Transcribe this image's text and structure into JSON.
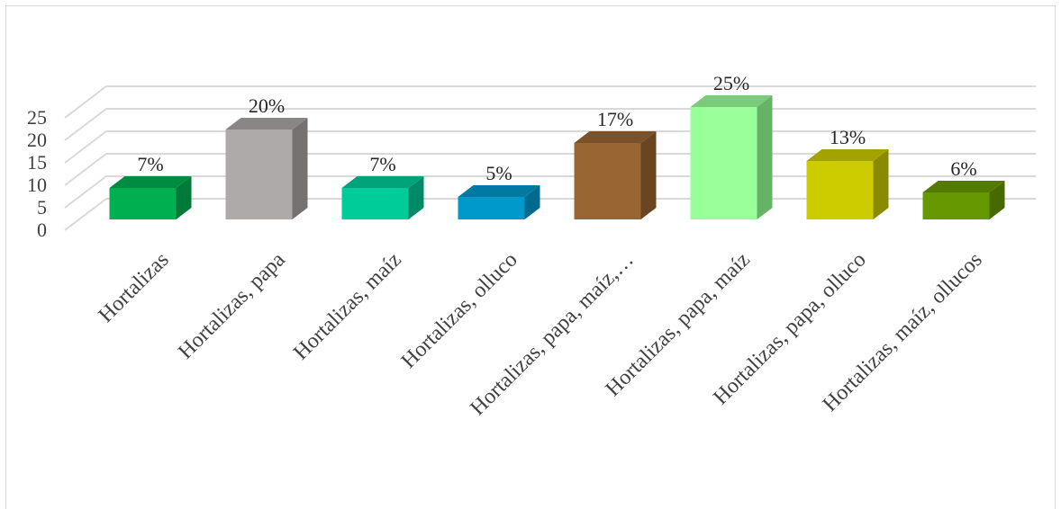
{
  "chart_data": {
    "type": "bar",
    "style": "3d-column",
    "categories": [
      "Hortalizas",
      "Hortalizas, papa",
      "Hortalizas, maíz",
      "Hortalizas, olluco",
      "Hortalizas, papa, maíz,…",
      "Hortalizas, papa, maíz",
      "Hortalizas, papa, olluco",
      "Hortalizas, maíz, ollucos"
    ],
    "values": [
      7,
      20,
      7,
      5,
      17,
      25,
      13,
      6
    ],
    "data_labels": [
      "7%",
      "20%",
      "7%",
      "5%",
      "17%",
      "25%",
      "13%",
      "6%"
    ],
    "colors": [
      "#00b050",
      "#aeaaaa",
      "#00cc99",
      "#0099cc",
      "#996633",
      "#99ff99",
      "#cccc00",
      "#669900"
    ],
    "side_colors": [
      "#007a38",
      "#767171",
      "#008a68",
      "#006a8e",
      "#6a4522",
      "#66b366",
      "#8a8a00",
      "#466900"
    ],
    "top_colors": [
      "#008c40",
      "#8a8686",
      "#00a37a",
      "#007aa3",
      "#7a5128",
      "#7acc7a",
      "#a3a300",
      "#527a00"
    ],
    "yticks": [
      0,
      5,
      10,
      15,
      20,
      25
    ],
    "ylim": [
      0,
      25
    ],
    "grid": true,
    "title": "",
    "xlabel": "",
    "ylabel": ""
  }
}
